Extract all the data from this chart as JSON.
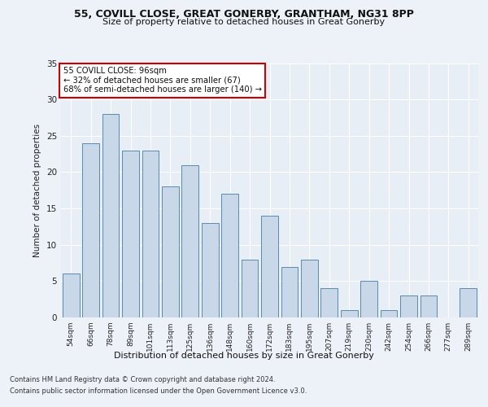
{
  "title1": "55, COVILL CLOSE, GREAT GONERBY, GRANTHAM, NG31 8PP",
  "title2": "Size of property relative to detached houses in Great Gonerby",
  "xlabel": "Distribution of detached houses by size in Great Gonerby",
  "ylabel": "Number of detached properties",
  "categories": [
    "54sqm",
    "66sqm",
    "78sqm",
    "89sqm",
    "101sqm",
    "113sqm",
    "125sqm",
    "136sqm",
    "148sqm",
    "160sqm",
    "172sqm",
    "183sqm",
    "195sqm",
    "207sqm",
    "219sqm",
    "230sqm",
    "242sqm",
    "254sqm",
    "266sqm",
    "277sqm",
    "289sqm"
  ],
  "values": [
    6,
    24,
    28,
    23,
    23,
    18,
    21,
    13,
    17,
    8,
    14,
    7,
    8,
    4,
    1,
    5,
    1,
    3,
    3,
    0,
    4
  ],
  "bar_color": "#c8d8e8",
  "bar_edge_color": "#5a8ab0",
  "annotation_border_color": "#cc0000",
  "annotation_line1": "55 COVILL CLOSE: 96sqm",
  "annotation_line2": "← 32% of detached houses are smaller (67)",
  "annotation_line3": "68% of semi-detached houses are larger (140) →",
  "footnote1": "Contains HM Land Registry data © Crown copyright and database right 2024.",
  "footnote2": "Contains public sector information licensed under the Open Government Licence v3.0.",
  "ylim": [
    0,
    35
  ],
  "yticks": [
    0,
    5,
    10,
    15,
    20,
    25,
    30,
    35
  ],
  "fig_bg_color": "#edf2f9",
  "plot_bg_color": "#e8eef6"
}
